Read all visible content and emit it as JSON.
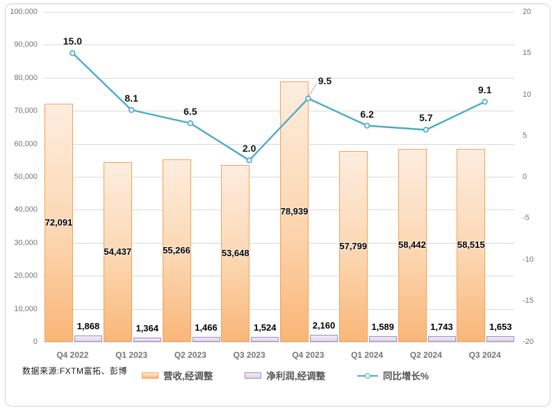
{
  "source_note": "数据来源:FXTM富拓、彭博",
  "chart_data": {
    "type": "combo",
    "categories": [
      "Q4 2022",
      "Q1 2023",
      "Q2 2023",
      "Q3 2023",
      "Q4 2023",
      "Q1 2024",
      "Q2 2024",
      "Q3 2024"
    ],
    "series": [
      {
        "name": "营收,经调整",
        "type": "bar",
        "axis": "left",
        "color": "#FBBE8C",
        "border_color": "#F0A157",
        "values": [
          72091,
          54437,
          55266,
          53648,
          78939,
          57799,
          58442,
          58515
        ],
        "labels": [
          "72,091",
          "54,437",
          "55,266",
          "53,648",
          "78,939",
          "57,799",
          "58,442",
          "58,515"
        ]
      },
      {
        "name": "净利润,经调整",
        "type": "bar",
        "axis": "left",
        "color": "#E6E0F0",
        "border_color": "#9C8CBC",
        "values": [
          1868,
          1364,
          1466,
          1524,
          2160,
          1589,
          1743,
          1653
        ],
        "labels": [
          "1,868",
          "1,364",
          "1,466",
          "1,524",
          "2,160",
          "1,589",
          "1,743",
          "1,653"
        ]
      },
      {
        "name": "同比增长%",
        "type": "line",
        "axis": "right",
        "color": "#4BACC6",
        "values": [
          15.0,
          8.1,
          6.5,
          2.0,
          9.5,
          6.2,
          5.7,
          9.1
        ],
        "labels": [
          "15.0",
          "8.1",
          "6.5",
          "2.0",
          "9.5",
          "6.2",
          "5.7",
          "9.1"
        ]
      }
    ],
    "left_axis": {
      "min": 0,
      "max": 100000,
      "step": 10000,
      "tick_labels": [
        "0",
        "10,000",
        "20,000",
        "30,000",
        "40,000",
        "50,000",
        "60,000",
        "70,000",
        "80,000",
        "90,000",
        "100,000"
      ]
    },
    "right_axis": {
      "min": -20,
      "max": 20,
      "step": 5,
      "tick_labels": [
        "-20",
        "-15",
        "-10",
        "-5",
        "0",
        "5",
        "10",
        "15",
        "20"
      ]
    },
    "grid": true,
    "legend_position": "bottom"
  }
}
